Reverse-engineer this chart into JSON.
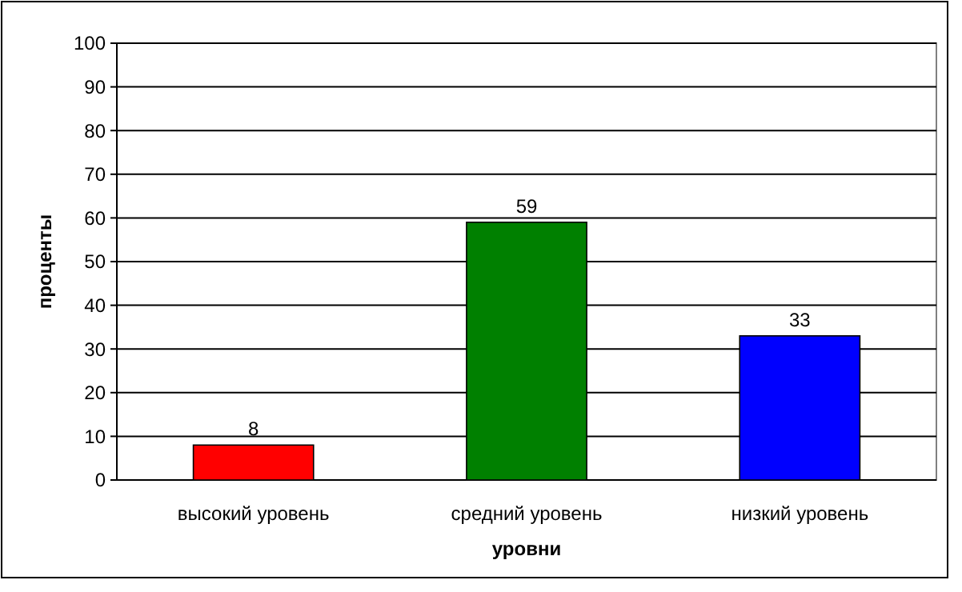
{
  "chart_data": {
    "type": "bar",
    "xlabel": "уровни",
    "ylabel": "проценты",
    "categories": [
      "высокий уровень",
      "средний уровень",
      "низкий уровень"
    ],
    "values": [
      8,
      59,
      33
    ],
    "colors": [
      "#ff0000",
      "#008000",
      "#0000ff"
    ],
    "ylim": [
      0,
      100
    ],
    "yticks": [
      0,
      10,
      20,
      30,
      40,
      50,
      60,
      70,
      80,
      90,
      100
    ],
    "grid": "y",
    "data_labels": true
  }
}
